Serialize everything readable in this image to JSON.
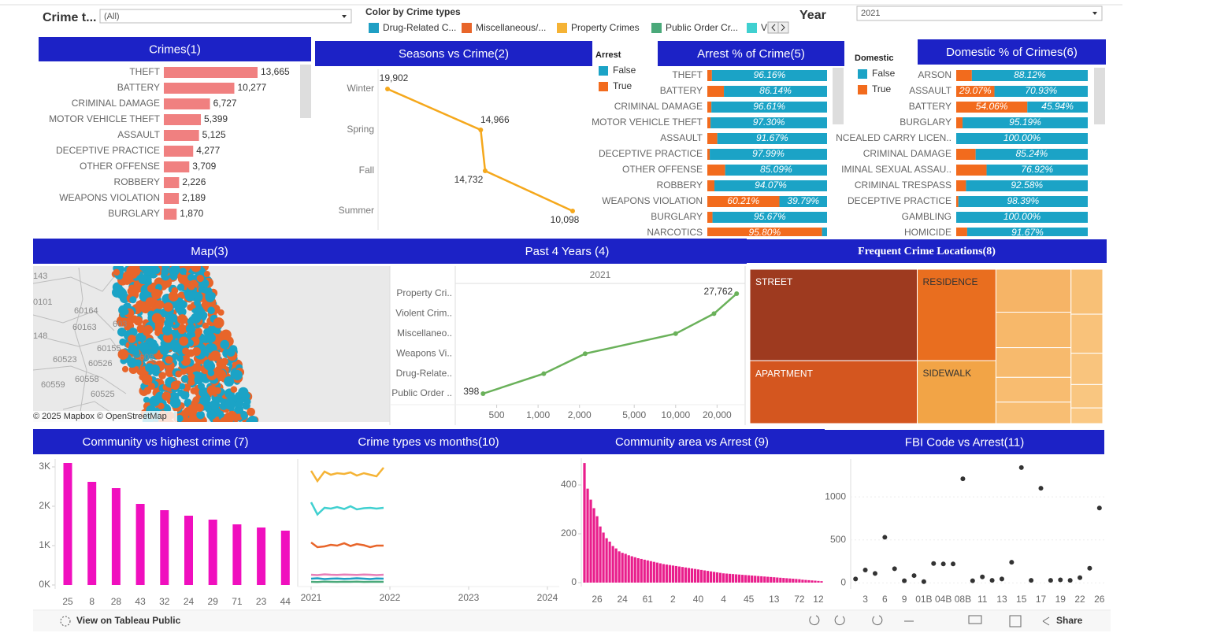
{
  "filters": {
    "crime_type_label": "Crime t...",
    "crime_type_value": "(All)",
    "legend_title": "Color by Crime types",
    "year_label": "Year",
    "year_value": "2021"
  },
  "map": {
    "title": "Map(3)",
    "attribution": "© 2025 Mapbox © OpenStreetMap",
    "zip_labels": [
      "143",
      "0101",
      "60164",
      "60163",
      "603",
      "148",
      "60155",
      "60523",
      "60526",
      "608",
      "60559",
      "60558",
      "60525"
    ]
  },
  "footer": {
    "view_link": "View on Tableau Public",
    "share": "Share"
  },
  "chart_data": [
    {
      "type": "bar",
      "orientation": "horizontal",
      "title": "Crimes(1)",
      "categories": [
        "THEFT",
        "BATTERY",
        "CRIMINAL DAMAGE",
        "MOTOR VEHICLE THEFT",
        "ASSAULT",
        "DECEPTIVE PRACTICE",
        "OTHER OFFENSE",
        "ROBBERY",
        "WEAPONS VIOLATION",
        "BURGLARY"
      ],
      "values": [
        13665,
        10277,
        6727,
        5399,
        5125,
        4277,
        3709,
        2226,
        2189,
        1870
      ],
      "value_labels": [
        "13,665",
        "10,277",
        "6,727",
        "5,399",
        "5,125",
        "4,277",
        "3,709",
        "2,226",
        "2,189",
        "1,870"
      ],
      "color": "#f08080"
    },
    {
      "type": "line",
      "title": "Seasons vs Crime(2)",
      "categories": [
        "Winter",
        "Spring",
        "Fall",
        "Summer"
      ],
      "values": [
        19902,
        14966,
        14732,
        10098
      ],
      "value_labels": [
        "19,902",
        "14,966",
        "14,732",
        "10,098"
      ],
      "color": "#f5a81c"
    },
    {
      "type": "stacked-bar",
      "title": "Arrest % of Crime(5)",
      "legend_title": "Arrest",
      "categories": [
        "THEFT",
        "BATTERY",
        "CRIMINAL DAMAGE",
        "MOTOR VEHICLE THEFT",
        "ASSAULT",
        "DECEPTIVE PRACTICE",
        "OTHER OFFENSE",
        "ROBBERY",
        "WEAPONS VIOLATION",
        "BURGLARY",
        "NARCOTICS"
      ],
      "series": [
        {
          "name": "False",
          "color": "#1ba3c6",
          "values": [
            96.16,
            86.14,
            96.61,
            97.3,
            91.67,
            97.99,
            85.09,
            94.07,
            39.79,
            95.67,
            4.2
          ],
          "value_labels": [
            "96.16%",
            "86.14%",
            "96.61%",
            "97.30%",
            "91.67%",
            "97.99%",
            "85.09%",
            "94.07%",
            "39.79%",
            "95.67%",
            null
          ]
        },
        {
          "name": "True",
          "color": "#f26b1d",
          "values": [
            3.84,
            13.86,
            3.39,
            2.7,
            8.33,
            2.01,
            14.91,
            5.93,
            60.21,
            4.33,
            95.8
          ],
          "value_labels": [
            null,
            null,
            null,
            null,
            null,
            null,
            null,
            null,
            "60.21%",
            null,
            "95.80%"
          ]
        }
      ]
    },
    {
      "type": "stacked-bar",
      "title": "Domestic %  of Crimes(6)",
      "legend_title": "Domestic",
      "categories": [
        "ARSON",
        "ASSAULT",
        "BATTERY",
        "BURGLARY",
        "NCEALED CARRY LICEN..",
        "CRIMINAL DAMAGE",
        "IMINAL SEXUAL ASSAU..",
        "CRIMINAL TRESPASS",
        "DECEPTIVE PRACTICE",
        "GAMBLING",
        "HOMICIDE"
      ],
      "series": [
        {
          "name": "False",
          "color": "#1ba3c6",
          "values": [
            88.12,
            70.93,
            45.94,
            95.19,
            100.0,
            85.24,
            76.92,
            92.58,
            98.39,
            100.0,
            91.67
          ],
          "value_labels": [
            "88.12%",
            "70.93%",
            "45.94%",
            "95.19%",
            "100.00%",
            "85.24%",
            "76.92%",
            "92.58%",
            "98.39%",
            "100.00%",
            "91.67%"
          ]
        },
        {
          "name": "True",
          "color": "#f26b1d",
          "values": [
            11.88,
            29.07,
            54.06,
            4.81,
            0,
            14.76,
            23.08,
            7.42,
            1.61,
            0,
            8.33
          ],
          "value_labels": [
            null,
            "29.07%",
            "54.06%",
            null,
            null,
            null,
            null,
            null,
            null,
            null,
            null
          ]
        }
      ]
    },
    {
      "type": "line",
      "title": "Past 4 Years (4)",
      "column_header": "2021",
      "categories": [
        "Property Cri..",
        "Violent Crim..",
        "Miscellaneo..",
        "Weapons Vi..",
        "Drug-Relate..",
        "Public Order .."
      ],
      "values": [
        27762,
        19000,
        10000,
        2200,
        1100,
        398
      ],
      "value_labels": [
        "27,762",
        null,
        null,
        null,
        null,
        "398"
      ],
      "log_x": true,
      "xlim": [
        250,
        32000
      ],
      "xticks": [
        500,
        {
          "value": 1000,
          "label": "1,000"
        },
        {
          "value": 2000,
          "label": "2,000"
        },
        {
          "value": 5000,
          "label": "5,000"
        },
        {
          "value": 10000,
          "label": "10,000"
        },
        {
          "value": 20000,
          "label": "20,000"
        }
      ],
      "color": "#6ab15a"
    },
    {
      "type": "treemap",
      "title": "Frequent Crime Locations(8)",
      "categories": [
        "STREET",
        "APARTMENT",
        "RESIDENCE",
        "SIDEWALK",
        null,
        null,
        null,
        null,
        null,
        null,
        null,
        null,
        null,
        null
      ],
      "values": [
        24700,
        17000,
        11600,
        8000,
        5200,
        4300,
        3600,
        3000,
        2600,
        2300,
        2000,
        1600,
        1200,
        800
      ],
      "colors": [
        "#9e3a1f",
        "#d4561f",
        "#e96e1f",
        "#f2a446",
        "#f6b466",
        "#f7b86a",
        "#f7ba6d",
        "#f8bc70",
        "#f8be73",
        "#f8c076",
        "#f9c27a",
        "#f9c47d",
        "#f9c680",
        "#fac883"
      ]
    },
    {
      "type": "bar",
      "title": "Community vs highest crime (7)",
      "categories": [
        "25",
        "8",
        "28",
        "43",
        "32",
        "24",
        "29",
        "71",
        "23",
        "44"
      ],
      "values": [
        3100,
        2620,
        2460,
        2060,
        1900,
        1760,
        1660,
        1540,
        1460,
        1380
      ],
      "ylim": [
        0,
        3200
      ],
      "yticks": [
        {
          "value": 0,
          "label": "0K"
        },
        {
          "value": 1000,
          "label": "1K"
        },
        {
          "value": 2000,
          "label": "2K"
        },
        {
          "value": 3000,
          "label": "3K"
        }
      ],
      "color": "#f00fbe"
    },
    {
      "type": "line",
      "title": "Crime types vs months(10)",
      "x": [
        2021,
        2021.08,
        2021.17,
        2021.25,
        2021.33,
        2021.42,
        2021.5,
        2021.58,
        2021.67,
        2021.75,
        2021.83,
        2021.92
      ],
      "xlim": [
        2020.83,
        2024.15
      ],
      "xticks": [
        2021,
        2022,
        2023,
        2024
      ],
      "ylim": [
        0,
        3200
      ],
      "series": [
        {
          "name": "Drug-Related C...",
          "color": "#1f9fc4",
          "values": [
            160,
            170,
            150,
            160,
            165,
            155,
            160,
            170,
            160,
            150,
            165,
            160
          ]
        },
        {
          "name": "Miscellaneous/...",
          "color": "#e8652a",
          "values": [
            1080,
            960,
            980,
            1020,
            1000,
            1060,
            990,
            1040,
            1010,
            960,
            1000,
            1000
          ]
        },
        {
          "name": "Property Crimes",
          "color": "#f5b335",
          "values": [
            2900,
            2640,
            2880,
            2800,
            2840,
            2820,
            2860,
            2780,
            2840,
            2800,
            2760,
            2980
          ]
        },
        {
          "name": "Public Order Cr...",
          "color": "#4aa97a",
          "values": [
            80,
            75,
            85,
            80,
            78,
            82,
            80,
            85,
            78,
            80,
            82,
            80
          ]
        },
        {
          "name": "V",
          "color": "#40d0d0",
          "values": [
            2100,
            1790,
            1960,
            1940,
            1980,
            1930,
            2000,
            1920,
            1950,
            1960,
            1940,
            1960
          ]
        },
        {
          "name": null,
          "color": "#e87fb8",
          "values": [
            260,
            250,
            270,
            260,
            255,
            265,
            260,
            255,
            265,
            260,
            250,
            260
          ]
        }
      ]
    },
    {
      "type": "bar",
      "title": "Community area vs Arrest (9)",
      "categories": [
        null,
        null,
        null,
        null,
        "26",
        null,
        null,
        null,
        null,
        null,
        null,
        null,
        "24",
        null,
        null,
        null,
        null,
        null,
        null,
        null,
        "61",
        null,
        null,
        null,
        null,
        null,
        null,
        null,
        "2",
        null,
        null,
        null,
        null,
        null,
        null,
        null,
        "40",
        null,
        null,
        null,
        null,
        null,
        null,
        null,
        "4",
        null,
        null,
        null,
        null,
        null,
        null,
        null,
        "45",
        null,
        null,
        null,
        null,
        null,
        null,
        null,
        "13",
        null,
        null,
        null,
        null,
        null,
        null,
        null,
        "72",
        null,
        null,
        null,
        null,
        null,
        "12",
        null
      ],
      "values": [
        490,
        385,
        340,
        305,
        272,
        230,
        205,
        182,
        168,
        150,
        140,
        128,
        122,
        118,
        112,
        108,
        104,
        100,
        97,
        94,
        91,
        88,
        85,
        82,
        79,
        76,
        74,
        72,
        70,
        68,
        66,
        64,
        62,
        60,
        58,
        56,
        54,
        52,
        50,
        48,
        46,
        44,
        42,
        40,
        38,
        37,
        36,
        35,
        34,
        33,
        32,
        31,
        30,
        29,
        28,
        27,
        26,
        25,
        24,
        23,
        22,
        21,
        20,
        19,
        18,
        17,
        16,
        15,
        14,
        12,
        11,
        10,
        9,
        8,
        7,
        6
      ],
      "ylim": [
        0,
        500
      ],
      "yticks": [
        0,
        200,
        400
      ],
      "color": "#e91e8c"
    },
    {
      "type": "scatter",
      "title": "FBI Code vs Arrest(11)",
      "categories": [
        null,
        "3",
        null,
        "6",
        null,
        "9",
        null,
        "01B",
        null,
        "04B",
        null,
        "08B",
        null,
        "11",
        null,
        "13",
        null,
        "15",
        null,
        "17",
        null,
        "19",
        null,
        "22",
        null,
        "26"
      ],
      "values": [
        45,
        150,
        110,
        530,
        165,
        25,
        85,
        15,
        225,
        220,
        220,
        1210,
        25,
        70,
        30,
        45,
        240,
        1340,
        30,
        1100,
        30,
        35,
        30,
        60,
        170,
        870
      ],
      "ylim": [
        -70,
        1440
      ],
      "yticks": [
        0,
        500,
        1000
      ],
      "color": "#333333"
    }
  ]
}
